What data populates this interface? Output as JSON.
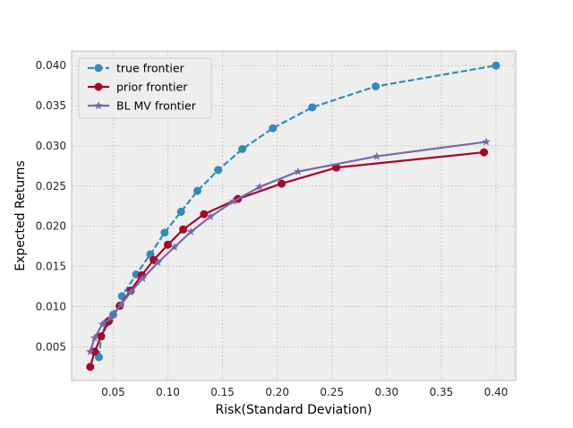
{
  "chart_data": {
    "type": "line",
    "title": "",
    "xlabel": "Risk(Standard Deviation)",
    "ylabel": "Expected Returns",
    "xlim": [
      0.012,
      0.418
    ],
    "ylim": [
      0.0008,
      0.0418
    ],
    "xticks": [
      0.05,
      0.1,
      0.15,
      0.2,
      0.25,
      0.3,
      0.35,
      0.4
    ],
    "xtick_labels": [
      "0.05",
      "0.10",
      "0.15",
      "0.20",
      "0.25",
      "0.30",
      "0.35",
      "0.40"
    ],
    "yticks": [
      0.005,
      0.01,
      0.015,
      0.02,
      0.025,
      0.03,
      0.035,
      0.04
    ],
    "ytick_labels": [
      "0.005",
      "0.010",
      "0.015",
      "0.020",
      "0.025",
      "0.030",
      "0.035",
      "0.040"
    ],
    "grid": true,
    "legend_position": "top-left",
    "series": [
      {
        "name": "true frontier",
        "color": "#348abd",
        "linestyle": "dashed",
        "marker": "circle",
        "x": [
          0.037,
          0.039,
          0.044,
          0.05,
          0.058,
          0.071,
          0.084,
          0.097,
          0.112,
          0.127,
          0.146,
          0.168,
          0.196,
          0.232,
          0.29,
          0.4
        ],
        "y": [
          0.0037,
          0.0063,
          0.008,
          0.009,
          0.0113,
          0.014,
          0.0165,
          0.0192,
          0.0218,
          0.0244,
          0.027,
          0.0296,
          0.0322,
          0.0348,
          0.0374,
          0.04
        ]
      },
      {
        "name": "prior frontier",
        "color": "#a60628",
        "linestyle": "solid",
        "marker": "circle",
        "x": [
          0.029,
          0.033,
          0.039,
          0.046,
          0.056,
          0.066,
          0.076,
          0.087,
          0.1,
          0.114,
          0.133,
          0.164,
          0.204,
          0.254,
          0.389
        ],
        "y": [
          0.0025,
          0.0044,
          0.0063,
          0.0082,
          0.0101,
          0.012,
          0.0139,
          0.0158,
          0.0177,
          0.0196,
          0.0215,
          0.0234,
          0.0253,
          0.0273,
          0.0292
        ]
      },
      {
        "name": "BL MV frontier",
        "color": "#7a68a6",
        "linestyle": "solid",
        "marker": "star",
        "x": [
          0.029,
          0.033,
          0.04,
          0.048,
          0.057,
          0.066,
          0.077,
          0.091,
          0.106,
          0.121,
          0.139,
          0.16,
          0.184,
          0.219,
          0.291,
          0.391
        ],
        "y": [
          0.0044,
          0.0061,
          0.0078,
          0.0086,
          0.0102,
          0.0118,
          0.0135,
          0.0155,
          0.0174,
          0.0193,
          0.0212,
          0.0231,
          0.0249,
          0.0268,
          0.0287,
          0.0305
        ]
      }
    ]
  }
}
